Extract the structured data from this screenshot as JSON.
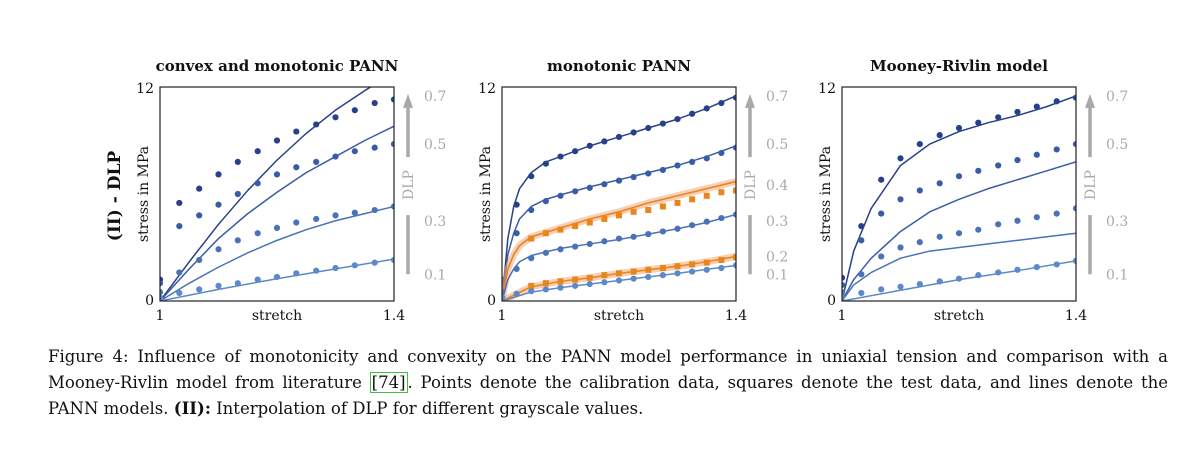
{
  "figure": {
    "row_label": "(II) - DLP",
    "colors": {
      "axis": "#222222",
      "dlp_gray": "#a9a9a9",
      "orange": "#e8861c",
      "orange_band": "#f2a77a"
    }
  },
  "chart_data": [
    {
      "type": "line",
      "title": "convex and monotonic PANN",
      "xlabel": "stretch",
      "ylabel": "stress in MPa",
      "xlim": [
        1,
        1.4
      ],
      "ylim": [
        0,
        12
      ],
      "xticks": [
        "1",
        "1.4"
      ],
      "yticks": [
        "0",
        "12"
      ],
      "grid": false,
      "dlp_axis": {
        "label": "DLP",
        "ticks": [
          "0.1",
          "0.3",
          "0.5",
          "0.7"
        ]
      },
      "series": [
        {
          "color": "#27408b",
          "points": {
            "x": [
              1.0,
              1.033,
              1.067,
              1.1,
              1.133,
              1.167,
              1.2,
              1.233,
              1.267,
              1.3,
              1.333,
              1.367,
              1.4
            ],
            "y": [
              1.2,
              5.5,
              6.3,
              7.1,
              7.8,
              8.4,
              9.0,
              9.5,
              9.9,
              10.3,
              10.7,
              11.1,
              11.3
            ]
          },
          "line": {
            "x": [
              1.0,
              1.05,
              1.1,
              1.15,
              1.2,
              1.25,
              1.3,
              1.35,
              1.4
            ],
            "y": [
              0,
              2.2,
              4.3,
              6.2,
              7.9,
              9.4,
              10.7,
              11.8,
              12.8
            ]
          }
        },
        {
          "color": "#3a5ca6",
          "points": {
            "x": [
              1.0,
              1.033,
              1.067,
              1.1,
              1.133,
              1.167,
              1.2,
              1.233,
              1.267,
              1.3,
              1.333,
              1.367,
              1.4
            ],
            "y": [
              1.0,
              4.2,
              4.8,
              5.4,
              6.0,
              6.6,
              7.1,
              7.5,
              7.8,
              8.1,
              8.4,
              8.6,
              8.8
            ]
          },
          "line": {
            "x": [
              1.0,
              1.05,
              1.1,
              1.15,
              1.2,
              1.25,
              1.3,
              1.35,
              1.4
            ],
            "y": [
              0,
              1.8,
              3.5,
              4.9,
              6.1,
              7.2,
              8.1,
              9.0,
              9.8
            ]
          }
        },
        {
          "color": "#4a72b8",
          "points": {
            "x": [
              1.0,
              1.033,
              1.067,
              1.1,
              1.133,
              1.167,
              1.2,
              1.233,
              1.267,
              1.3,
              1.333,
              1.367,
              1.4
            ],
            "y": [
              0.5,
              1.6,
              2.3,
              2.9,
              3.4,
              3.8,
              4.1,
              4.4,
              4.6,
              4.8,
              4.95,
              5.1,
              5.3
            ]
          },
          "line": {
            "x": [
              1.0,
              1.05,
              1.1,
              1.15,
              1.2,
              1.25,
              1.3,
              1.35,
              1.4
            ],
            "y": [
              0,
              1.0,
              1.9,
              2.7,
              3.4,
              4.0,
              4.5,
              4.9,
              5.3
            ]
          }
        },
        {
          "color": "#5b89c9",
          "points": {
            "x": [
              1.0,
              1.033,
              1.067,
              1.1,
              1.133,
              1.167,
              1.2,
              1.233,
              1.267,
              1.3,
              1.333,
              1.367,
              1.4
            ],
            "y": [
              0.2,
              0.45,
              0.65,
              0.85,
              1.0,
              1.2,
              1.35,
              1.55,
              1.7,
              1.85,
              2.0,
              2.15,
              2.3
            ]
          },
          "line": {
            "x": [
              1.0,
              1.1,
              1.2,
              1.3,
              1.4
            ],
            "y": [
              0,
              0.65,
              1.25,
              1.8,
              2.35
            ]
          }
        }
      ]
    },
    {
      "type": "line",
      "title": "monotonic PANN",
      "xlabel": "stretch",
      "ylabel": "stress in MPa",
      "xlim": [
        1,
        1.4
      ],
      "ylim": [
        0,
        12
      ],
      "xticks": [
        "1",
        "1.4"
      ],
      "yticks": [
        "0",
        "12"
      ],
      "grid": false,
      "dlp_axis": {
        "label": "DLP",
        "ticks": [
          "0.1",
          "0.2",
          "0.3",
          "0.4",
          "0.5",
          "0.7"
        ]
      },
      "series": [
        {
          "color": "#27408b",
          "points": {
            "x": [
              1.0,
              1.025,
              1.05,
              1.075,
              1.1,
              1.125,
              1.15,
              1.175,
              1.2,
              1.225,
              1.25,
              1.275,
              1.3,
              1.325,
              1.35,
              1.375,
              1.4
            ],
            "y": [
              1.2,
              5.4,
              7.0,
              7.7,
              8.1,
              8.4,
              8.7,
              8.95,
              9.2,
              9.45,
              9.7,
              9.95,
              10.2,
              10.5,
              10.8,
              11.1,
              11.4
            ]
          },
          "line": {
            "x": [
              1.0,
              1.01,
              1.02,
              1.03,
              1.05,
              1.075,
              1.1,
              1.15,
              1.2,
              1.25,
              1.3,
              1.35,
              1.4
            ],
            "y": [
              0,
              3.5,
              5.3,
              6.3,
              7.2,
              7.8,
              8.1,
              8.7,
              9.2,
              9.7,
              10.2,
              10.8,
              11.5
            ]
          }
        },
        {
          "color": "#3a5ca6",
          "points": {
            "x": [
              1.0,
              1.025,
              1.05,
              1.075,
              1.1,
              1.125,
              1.15,
              1.175,
              1.2,
              1.225,
              1.25,
              1.275,
              1.3,
              1.325,
              1.35,
              1.375,
              1.4
            ],
            "y": [
              0.9,
              3.8,
              5.1,
              5.6,
              5.9,
              6.15,
              6.35,
              6.55,
              6.75,
              6.95,
              7.15,
              7.35,
              7.6,
              7.8,
              8.0,
              8.3,
              8.6
            ]
          },
          "line": {
            "x": [
              1.0,
              1.01,
              1.02,
              1.03,
              1.05,
              1.075,
              1.1,
              1.15,
              1.2,
              1.25,
              1.3,
              1.35,
              1.4
            ],
            "y": [
              0,
              2.6,
              3.8,
              4.6,
              5.3,
              5.7,
              5.95,
              6.4,
              6.8,
              7.2,
              7.6,
              8.1,
              8.7
            ]
          }
        },
        {
          "color": "#e8861c",
          "marker": "square",
          "band": true,
          "points": {
            "x": [
              1.05,
              1.075,
              1.1,
              1.125,
              1.15,
              1.175,
              1.2,
              1.225,
              1.25,
              1.275,
              1.3,
              1.325,
              1.35,
              1.375,
              1.4
            ],
            "y": [
              3.5,
              3.8,
              4.0,
              4.2,
              4.4,
              4.6,
              4.8,
              5.0,
              5.1,
              5.3,
              5.5,
              5.7,
              5.9,
              6.1,
              6.2
            ]
          },
          "line": {
            "x": [
              1.0,
              1.01,
              1.02,
              1.03,
              1.05,
              1.1,
              1.15,
              1.2,
              1.25,
              1.3,
              1.35,
              1.4
            ],
            "y": [
              0,
              1.8,
              2.6,
              3.1,
              3.6,
              4.1,
              4.6,
              5.0,
              5.5,
              5.9,
              6.3,
              6.7
            ]
          }
        },
        {
          "color": "#4a72b8",
          "points": {
            "x": [
              1.0,
              1.025,
              1.05,
              1.075,
              1.1,
              1.125,
              1.15,
              1.175,
              1.2,
              1.225,
              1.25,
              1.275,
              1.3,
              1.325,
              1.35,
              1.375,
              1.4
            ],
            "y": [
              0.5,
              1.8,
              2.4,
              2.7,
              2.9,
              3.05,
              3.2,
              3.35,
              3.5,
              3.6,
              3.75,
              3.9,
              4.05,
              4.25,
              4.45,
              4.65,
              4.85
            ]
          },
          "line": {
            "x": [
              1.0,
              1.01,
              1.02,
              1.03,
              1.05,
              1.1,
              1.15,
              1.2,
              1.25,
              1.3,
              1.35,
              1.4
            ],
            "y": [
              0,
              1.2,
              1.8,
              2.2,
              2.55,
              2.95,
              3.2,
              3.45,
              3.75,
              4.05,
              4.4,
              4.85
            ]
          }
        },
        {
          "color": "#e8861c",
          "marker": "square",
          "band": true,
          "points": {
            "x": [
              1.05,
              1.075,
              1.1,
              1.125,
              1.15,
              1.175,
              1.2,
              1.225,
              1.25,
              1.275,
              1.3,
              1.325,
              1.35,
              1.375,
              1.4
            ],
            "y": [
              0.85,
              1.0,
              1.1,
              1.2,
              1.3,
              1.45,
              1.55,
              1.65,
              1.75,
              1.85,
              1.95,
              2.05,
              2.15,
              2.3,
              2.45
            ]
          },
          "line": {
            "x": [
              1.0,
              1.05,
              1.1,
              1.15,
              1.2,
              1.25,
              1.3,
              1.35,
              1.4
            ],
            "y": [
              0,
              0.8,
              1.1,
              1.3,
              1.55,
              1.75,
              1.95,
              2.2,
              2.5
            ]
          }
        },
        {
          "color": "#5b89c9",
          "points": {
            "x": [
              1.0,
              1.025,
              1.05,
              1.075,
              1.1,
              1.125,
              1.15,
              1.175,
              1.2,
              1.225,
              1.25,
              1.275,
              1.3,
              1.325,
              1.35,
              1.375,
              1.4
            ],
            "y": [
              0.2,
              0.4,
              0.55,
              0.65,
              0.75,
              0.85,
              0.95,
              1.05,
              1.15,
              1.25,
              1.35,
              1.45,
              1.55,
              1.65,
              1.75,
              1.85,
              2.0
            ]
          },
          "line": {
            "x": [
              1.0,
              1.05,
              1.1,
              1.2,
              1.3,
              1.4
            ],
            "y": [
              0,
              0.5,
              0.75,
              1.15,
              1.55,
              2.0
            ]
          }
        }
      ]
    },
    {
      "type": "line",
      "title": "Mooney-Rivlin model",
      "xlabel": "stretch",
      "ylabel": "stress in MPa",
      "xlim": [
        1,
        1.4
      ],
      "ylim": [
        0,
        12
      ],
      "xticks": [
        "1",
        "1.4"
      ],
      "yticks": [
        "0",
        "12"
      ],
      "grid": false,
      "dlp_axis": {
        "label": "DLP",
        "ticks": [
          "0.1",
          "0.3",
          "0.5",
          "0.7"
        ]
      },
      "series": [
        {
          "color": "#27408b",
          "points": {
            "x": [
              1.0,
              1.033,
              1.067,
              1.1,
              1.133,
              1.167,
              1.2,
              1.233,
              1.267,
              1.3,
              1.333,
              1.367,
              1.4
            ],
            "y": [
              1.3,
              4.2,
              6.8,
              8.0,
              8.8,
              9.3,
              9.7,
              10.0,
              10.3,
              10.6,
              10.9,
              11.2,
              11.4
            ]
          },
          "line": {
            "x": [
              1.0,
              1.02,
              1.05,
              1.1,
              1.15,
              1.2,
              1.25,
              1.3,
              1.35,
              1.4
            ],
            "y": [
              0,
              2.8,
              5.2,
              7.6,
              8.8,
              9.5,
              10.0,
              10.4,
              10.9,
              11.5
            ]
          }
        },
        {
          "color": "#3a5ca6",
          "points": {
            "x": [
              1.0,
              1.033,
              1.067,
              1.1,
              1.133,
              1.167,
              1.2,
              1.233,
              1.267,
              1.3,
              1.333,
              1.367,
              1.4
            ],
            "y": [
              0.9,
              3.4,
              4.9,
              5.7,
              6.2,
              6.6,
              7.0,
              7.3,
              7.6,
              7.9,
              8.2,
              8.5,
              8.8
            ]
          },
          "line": {
            "x": [
              1.0,
              1.02,
              1.05,
              1.1,
              1.15,
              1.2,
              1.25,
              1.3,
              1.35,
              1.4
            ],
            "y": [
              0,
              1.2,
              2.4,
              3.9,
              5.0,
              5.7,
              6.3,
              6.8,
              7.3,
              7.8
            ]
          }
        },
        {
          "color": "#4a72b8",
          "points": {
            "x": [
              1.0,
              1.033,
              1.067,
              1.1,
              1.133,
              1.167,
              1.2,
              1.233,
              1.267,
              1.3,
              1.333,
              1.367,
              1.4
            ],
            "y": [
              0.5,
              1.5,
              2.5,
              3.0,
              3.3,
              3.6,
              3.8,
              4.0,
              4.3,
              4.5,
              4.7,
              4.9,
              5.2
            ]
          },
          "line": {
            "x": [
              1.0,
              1.02,
              1.05,
              1.1,
              1.15,
              1.2,
              1.25,
              1.3,
              1.35,
              1.4
            ],
            "y": [
              0,
              0.9,
              1.6,
              2.4,
              2.8,
              3.0,
              3.2,
              3.4,
              3.6,
              3.8
            ]
          }
        },
        {
          "color": "#5b89c9",
          "points": {
            "x": [
              1.0,
              1.033,
              1.067,
              1.1,
              1.133,
              1.167,
              1.2,
              1.233,
              1.267,
              1.3,
              1.333,
              1.367,
              1.4
            ],
            "y": [
              0.2,
              0.45,
              0.65,
              0.8,
              0.95,
              1.1,
              1.25,
              1.45,
              1.6,
              1.75,
              1.9,
              2.05,
              2.25
            ]
          },
          "line": {
            "x": [
              1.0,
              1.1,
              1.2,
              1.3,
              1.4
            ],
            "y": [
              0,
              0.6,
              1.2,
              1.7,
              2.25
            ]
          }
        }
      ]
    }
  ],
  "caption": {
    "part1": "Figure 4: Influence of monotonicity and convexity on the PANN model performance in uniaxial tension and comparison with a Mooney-Rivlin model from literature ",
    "cite": "[74]",
    "part2": ". Points denote the calibration data, squares denote the test data, and lines denote the PANN models. ",
    "bold": "(II):",
    "part3": " Interpolation of DLP for different grayscale values."
  }
}
